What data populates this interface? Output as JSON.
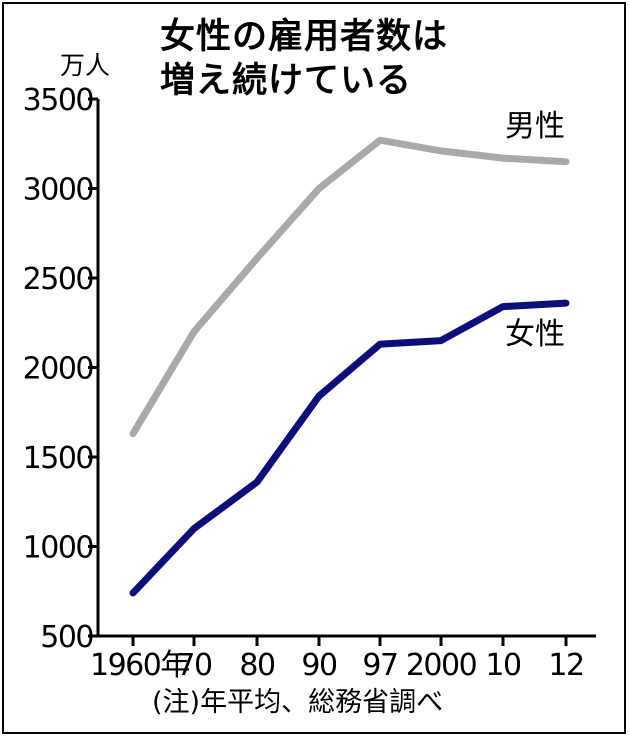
{
  "title_line1": "女性の雇用者数は",
  "title_line2": "増え続けている",
  "unit_label": "万人",
  "note": "(注)年平均、総務省調べ",
  "chart_data": {
    "type": "line",
    "x_tick_labels": [
      "1960年",
      "70",
      "80",
      "90",
      "97",
      "2000",
      "10",
      "12"
    ],
    "y_ticks": [
      500,
      1000,
      1500,
      2000,
      2500,
      3000,
      3500
    ],
    "ylim": [
      500,
      3500
    ],
    "grid": false,
    "series": [
      {
        "name": "男性",
        "color": "#a9a9a9",
        "values": [
          1630,
          2200,
          2610,
          3000,
          3270,
          3210,
          3170,
          3150
        ]
      },
      {
        "name": "女性",
        "color": "#0c0e7a",
        "values": [
          740,
          1100,
          1360,
          1840,
          2130,
          2150,
          2340,
          2360
        ]
      }
    ]
  }
}
